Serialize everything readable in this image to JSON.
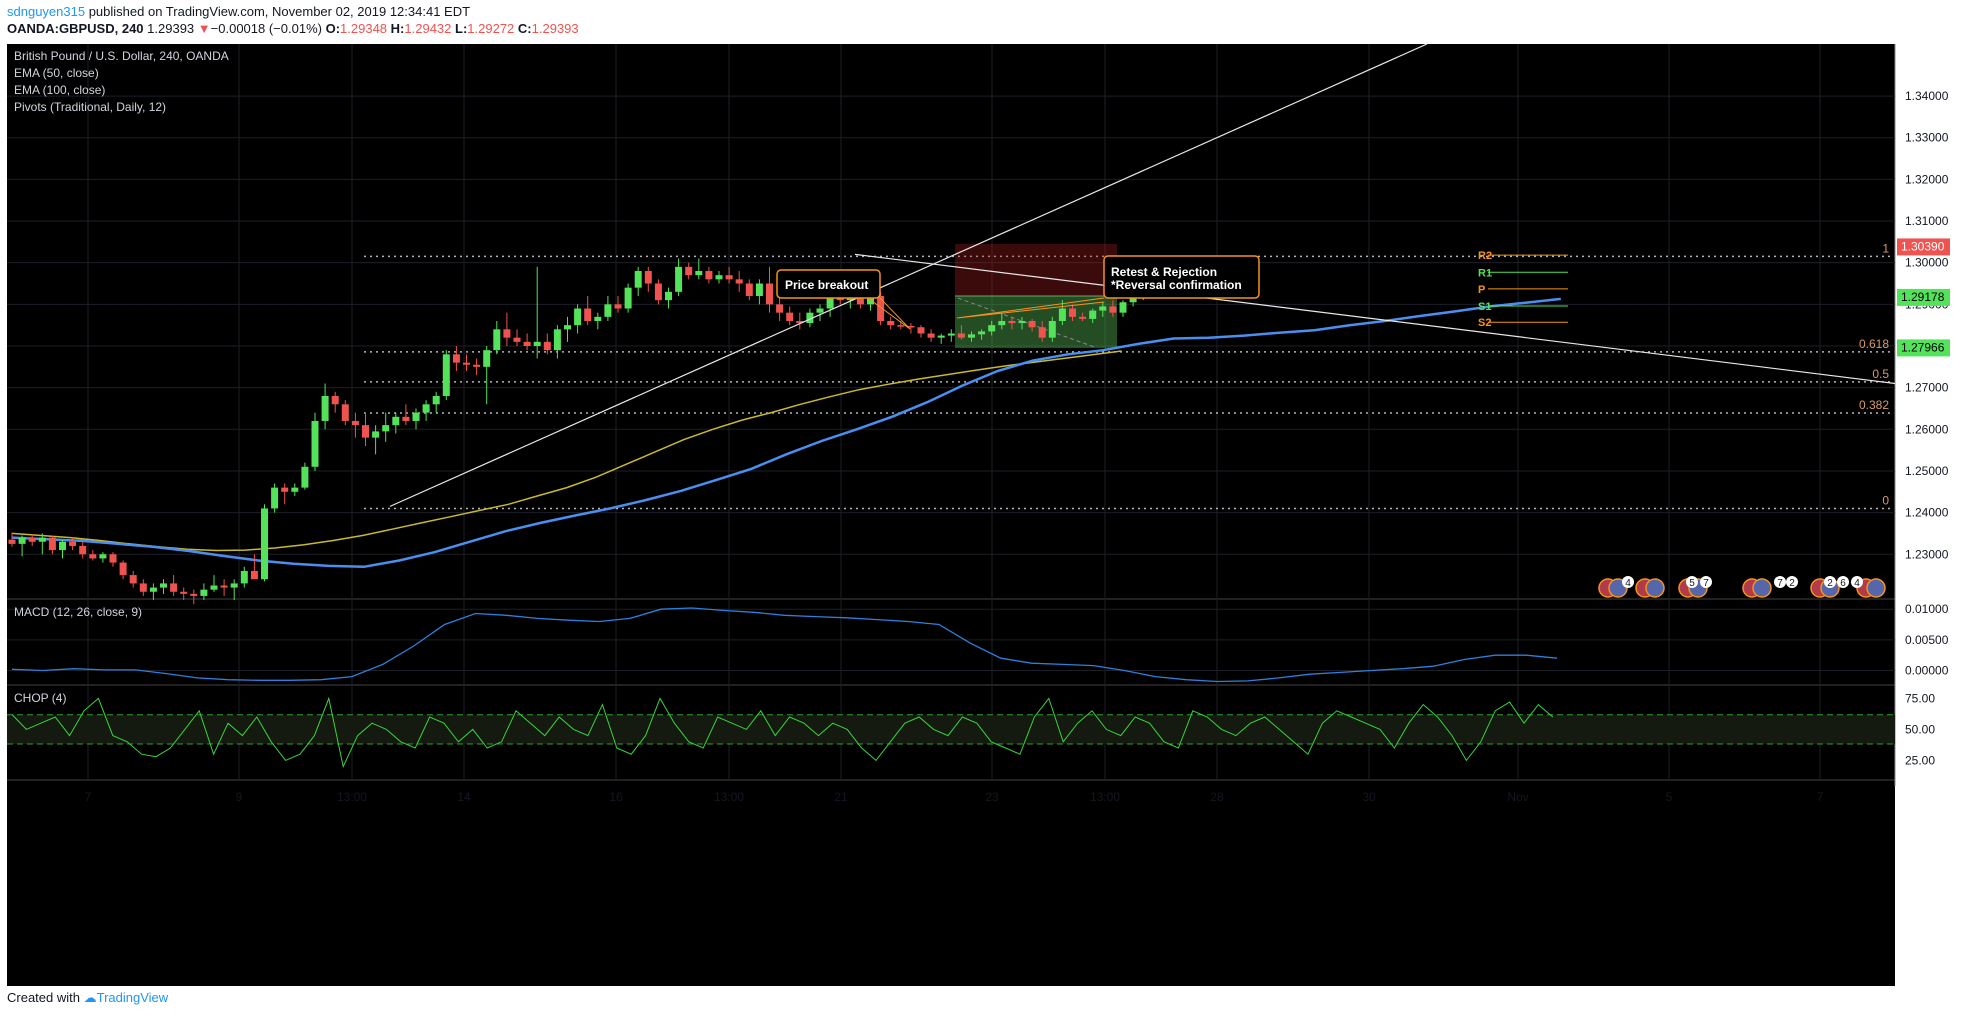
{
  "header": {
    "author": "sdnguyen315",
    "published_text": "published on TradingView.com, November 02, 2019 12:34:41 EDT",
    "symbol_line": "OANDA:GBPUSD, 240",
    "last": "1.29393",
    "change_arrow": "▼",
    "change": "−0.00018 (−0.01%)",
    "o_label": "O:",
    "o_val": "1.29348",
    "h_label": "H:",
    "h_val": "1.29432",
    "l_label": "L:",
    "l_val": "1.29272",
    "c_label": "C:",
    "c_val": "1.29393"
  },
  "legend": [
    "British Pound / U.S. Dollar, 240, OANDA",
    "EMA (50, close)",
    "EMA (100, close)",
    "Pivots (Traditional, Daily, 12)"
  ],
  "footer": {
    "created_with": "Created with",
    "brand": "TradingView"
  },
  "colors": {
    "background": "#000000",
    "grid": "#1c1f26",
    "up": "#53e25a",
    "down": "#ef5350",
    "ema50": "#4a8ff0",
    "ema100": "#c9b92e",
    "macd": "#2f7fdc",
    "chop": "#38d43c",
    "fib": "#b2b5be",
    "annotation": "#f7931a"
  },
  "chart_data": [
    {
      "type": "candlestick",
      "title": "British Pound / U.S. Dollar, 240, OANDA",
      "x_ticks": [
        "7",
        "9",
        "13:00",
        "14",
        "16",
        "13:00",
        "21",
        "23",
        "13:00",
        "28",
        "30",
        "Nov",
        "5",
        "7"
      ],
      "y_ticks": [
        "1.23000",
        "1.24000",
        "1.25000",
        "1.26000",
        "1.27000",
        "1.28000",
        "1.29000",
        "1.30000",
        "1.31000",
        "1.32000",
        "1.33000",
        "1.34000"
      ],
      "ylim": [
        1.2195,
        1.3525
      ],
      "price_badges": [
        {
          "value": "1.30390",
          "color": "#ef5350"
        },
        {
          "value": "1.29178",
          "color": "#53e25a"
        },
        {
          "value": "1.27966",
          "color": "#53e25a"
        }
      ],
      "fib_levels": [
        {
          "label": "1",
          "value": 1.3015
        },
        {
          "label": "0.618",
          "value": 1.2786
        },
        {
          "label": "0.5",
          "value": 1.2714
        },
        {
          "label": "0.382",
          "value": 1.2639
        },
        {
          "label": "0",
          "value": 1.241
        }
      ],
      "pivots": [
        {
          "label": "R2",
          "value": 1.3018,
          "color": "#f7931a"
        },
        {
          "label": "R1",
          "value": 1.2977,
          "color": "#53e25a"
        },
        {
          "label": "P",
          "value": 1.2937,
          "color": "#f7931a"
        },
        {
          "label": "S1",
          "value": 1.2896,
          "color": "#53e25a"
        },
        {
          "label": "S2",
          "value": 1.2857,
          "color": "#f7931a"
        }
      ],
      "annotations": [
        {
          "text": "Price breakout"
        },
        {
          "text": "Retest & Rejection",
          "text2": "*Reversal confirmation"
        }
      ],
      "event_badges": [
        "4",
        "5",
        "7",
        "7",
        "2",
        "2",
        "6",
        "4"
      ],
      "ohlc": [
        [
          1.2335,
          1.2352,
          1.2318,
          1.2325
        ],
        [
          1.2325,
          1.2345,
          1.2295,
          1.234
        ],
        [
          1.234,
          1.2348,
          1.232,
          1.233
        ],
        [
          1.233,
          1.235,
          1.23,
          1.234
        ],
        [
          1.234,
          1.2345,
          1.23,
          1.231
        ],
        [
          1.231,
          1.2335,
          1.229,
          1.233
        ],
        [
          1.233,
          1.234,
          1.231,
          1.232
        ],
        [
          1.232,
          1.233,
          1.229,
          1.23
        ],
        [
          1.23,
          1.231,
          1.2285,
          1.229
        ],
        [
          1.229,
          1.2305,
          1.228,
          1.23
        ],
        [
          1.23,
          1.2305,
          1.227,
          1.228
        ],
        [
          1.228,
          1.2285,
          1.224,
          1.225
        ],
        [
          1.225,
          1.226,
          1.222,
          1.223
        ],
        [
          1.223,
          1.224,
          1.22,
          1.221
        ],
        [
          1.221,
          1.223,
          1.219,
          1.222
        ],
        [
          1.222,
          1.224,
          1.2205,
          1.223
        ],
        [
          1.223,
          1.225,
          1.22,
          1.221
        ],
        [
          1.221,
          1.222,
          1.219,
          1.2205
        ],
        [
          1.2205,
          1.2215,
          1.218,
          1.22
        ],
        [
          1.22,
          1.223,
          1.219,
          1.2215
        ],
        [
          1.2215,
          1.225,
          1.221,
          1.2225
        ],
        [
          1.2225,
          1.224,
          1.22,
          1.222
        ],
        [
          1.222,
          1.224,
          1.219,
          1.223
        ],
        [
          1.223,
          1.227,
          1.222,
          1.226
        ],
        [
          1.226,
          1.23,
          1.225,
          1.224
        ],
        [
          1.224,
          1.242,
          1.2235,
          1.241
        ],
        [
          1.241,
          1.247,
          1.24,
          1.246
        ],
        [
          1.246,
          1.247,
          1.242,
          1.245
        ],
        [
          1.245,
          1.247,
          1.244,
          1.246
        ],
        [
          1.246,
          1.252,
          1.2455,
          1.251
        ],
        [
          1.251,
          1.264,
          1.25,
          1.262
        ],
        [
          1.262,
          1.271,
          1.26,
          1.268
        ],
        [
          1.268,
          1.269,
          1.264,
          1.266
        ],
        [
          1.266,
          1.267,
          1.261,
          1.262
        ],
        [
          1.262,
          1.264,
          1.258,
          1.261
        ],
        [
          1.261,
          1.264,
          1.256,
          1.258
        ],
        [
          1.258,
          1.261,
          1.254,
          1.2595
        ],
        [
          1.2595,
          1.264,
          1.257,
          1.261
        ],
        [
          1.261,
          1.264,
          1.259,
          1.263
        ],
        [
          1.263,
          1.266,
          1.261,
          1.262
        ],
        [
          1.262,
          1.265,
          1.26,
          1.264
        ],
        [
          1.264,
          1.267,
          1.262,
          1.266
        ],
        [
          1.266,
          1.269,
          1.264,
          1.268
        ],
        [
          1.268,
          1.279,
          1.267,
          1.278
        ],
        [
          1.278,
          1.28,
          1.274,
          1.276
        ],
        [
          1.276,
          1.278,
          1.274,
          1.2755
        ],
        [
          1.2755,
          1.277,
          1.273,
          1.275
        ],
        [
          1.275,
          1.28,
          1.266,
          1.279
        ],
        [
          1.279,
          1.286,
          1.278,
          1.284
        ],
        [
          1.284,
          1.288,
          1.28,
          1.282
        ],
        [
          1.282,
          1.284,
          1.28,
          1.281
        ],
        [
          1.281,
          1.283,
          1.279,
          1.28
        ],
        [
          1.28,
          1.299,
          1.277,
          1.281
        ],
        [
          1.281,
          1.283,
          1.278,
          1.279
        ],
        [
          1.279,
          1.285,
          1.277,
          1.284
        ],
        [
          1.284,
          1.287,
          1.281,
          1.285
        ],
        [
          1.285,
          1.29,
          1.283,
          1.289
        ],
        [
          1.289,
          1.292,
          1.285,
          1.286
        ],
        [
          1.286,
          1.288,
          1.284,
          1.287
        ],
        [
          1.287,
          1.292,
          1.286,
          1.29
        ],
        [
          1.29,
          1.292,
          1.288,
          1.289
        ],
        [
          1.289,
          1.295,
          1.288,
          1.294
        ],
        [
          1.294,
          1.299,
          1.292,
          1.298
        ],
        [
          1.298,
          1.299,
          1.293,
          1.295
        ],
        [
          1.295,
          1.296,
          1.29,
          1.291
        ],
        [
          1.291,
          1.294,
          1.289,
          1.293
        ],
        [
          1.293,
          1.301,
          1.292,
          1.299
        ],
        [
          1.299,
          1.3,
          1.296,
          1.297
        ],
        [
          1.297,
          1.301,
          1.296,
          1.298
        ],
        [
          1.298,
          1.299,
          1.295,
          1.296
        ],
        [
          1.296,
          1.298,
          1.295,
          1.297
        ],
        [
          1.297,
          1.299,
          1.295,
          1.296
        ],
        [
          1.296,
          1.298,
          1.293,
          1.295
        ],
        [
          1.295,
          1.296,
          1.291,
          1.292
        ],
        [
          1.292,
          1.296,
          1.29,
          1.295
        ],
        [
          1.295,
          1.299,
          1.288,
          1.29
        ],
        [
          1.29,
          1.292,
          1.286,
          1.288
        ],
        [
          1.288,
          1.2895,
          1.285,
          1.286
        ],
        [
          1.286,
          1.288,
          1.284,
          1.2855
        ],
        [
          1.2855,
          1.289,
          1.2845,
          1.288
        ],
        [
          1.288,
          1.29,
          1.286,
          1.289
        ],
        [
          1.289,
          1.292,
          1.287,
          1.2915
        ],
        [
          1.2915,
          1.2925,
          1.29,
          1.291
        ],
        [
          1.291,
          1.293,
          1.289,
          1.292
        ],
        [
          1.292,
          1.293,
          1.289,
          1.29
        ],
        [
          1.29,
          1.293,
          1.2885,
          1.292
        ],
        [
          1.292,
          1.293,
          1.285,
          1.286
        ],
        [
          1.286,
          1.287,
          1.284,
          1.285
        ],
        [
          1.285,
          1.286,
          1.284,
          1.2848
        ],
        [
          1.2848,
          1.2855,
          1.283,
          1.2845
        ],
        [
          1.2845,
          1.285,
          1.282,
          1.283
        ],
        [
          1.283,
          1.284,
          1.281,
          1.282
        ],
        [
          1.282,
          1.283,
          1.2805,
          1.2825
        ],
        [
          1.2825,
          1.284,
          1.281,
          1.283
        ],
        [
          1.283,
          1.285,
          1.2815,
          1.282
        ],
        [
          1.282,
          1.2835,
          1.281,
          1.2828
        ],
        [
          1.2828,
          1.284,
          1.2815,
          1.2835
        ],
        [
          1.2835,
          1.286,
          1.2825,
          1.285
        ],
        [
          1.285,
          1.288,
          1.284,
          1.286
        ],
        [
          1.286,
          1.287,
          1.284,
          1.2855
        ],
        [
          1.2855,
          1.287,
          1.284,
          1.286
        ],
        [
          1.286,
          1.2865,
          1.2835,
          1.2845
        ],
        [
          1.2845,
          1.286,
          1.281,
          1.282
        ],
        [
          1.282,
          1.287,
          1.281,
          1.286
        ],
        [
          1.286,
          1.291,
          1.285,
          1.289
        ],
        [
          1.289,
          1.29,
          1.286,
          1.287
        ],
        [
          1.287,
          1.288,
          1.286,
          1.2865
        ],
        [
          1.2865,
          1.289,
          1.2855,
          1.2885
        ],
        [
          1.2885,
          1.2905,
          1.287,
          1.2895
        ],
        [
          1.2895,
          1.291,
          1.287,
          1.288
        ],
        [
          1.288,
          1.291,
          1.287,
          1.2905
        ],
        [
          1.2905,
          1.293,
          1.2895,
          1.2925
        ],
        [
          1.2925,
          1.295,
          1.291,
          1.2945
        ],
        [
          1.2945,
          1.297,
          1.293,
          1.296
        ],
        [
          1.296,
          1.297,
          1.293,
          1.295
        ],
        [
          1.295,
          1.296,
          1.293,
          1.294
        ],
        [
          1.294,
          1.2965,
          1.293,
          1.296
        ],
        [
          1.296,
          1.297,
          1.295,
          1.2955
        ],
        [
          1.2955,
          1.2975,
          1.292,
          1.2935
        ],
        [
          1.2935,
          1.2945,
          1.2925,
          1.2939
        ]
      ],
      "ema50": [
        1.234,
        1.2336,
        1.2332,
        1.2325,
        1.2318,
        1.2308,
        1.2296,
        1.2285,
        1.2277,
        1.2272,
        1.227,
        1.2285,
        1.2305,
        1.233,
        1.2355,
        1.2375,
        1.2393,
        1.241,
        1.243,
        1.2452,
        1.2478,
        1.2505,
        1.254,
        1.2572,
        1.26,
        1.263,
        1.2665,
        1.2705,
        1.274,
        1.2765,
        1.278,
        1.279,
        1.2805,
        1.2818,
        1.282,
        1.2825,
        1.2832,
        1.2838,
        1.285,
        1.286,
        1.2872,
        1.2883,
        1.2895,
        1.2904,
        1.2913
      ],
      "ema100": [
        1.235,
        1.2345,
        1.234,
        1.2333,
        1.2325,
        1.2318,
        1.2312,
        1.2309,
        1.231,
        1.2315,
        1.2323,
        1.2333,
        1.2345,
        1.236,
        1.2375,
        1.239,
        1.2405,
        1.242,
        1.244,
        1.246,
        1.2485,
        1.2515,
        1.2545,
        1.2575,
        1.26,
        1.2622,
        1.264,
        1.266,
        1.2678,
        1.2695,
        1.2708,
        1.272,
        1.2731,
        1.2742,
        1.2752,
        1.2761,
        1.277,
        1.2779,
        1.2788
      ],
      "macd_ticks": [
        "0.00000",
        "0.00500",
        "0.01000"
      ],
      "macd_label": "MACD (12, 26, close, 9)",
      "macd": [
        0.0002,
        0.0,
        0.0003,
        0.0001,
        0.0001,
        -0.0005,
        -0.0012,
        -0.0015,
        -0.0016,
        -0.0016,
        -0.0015,
        -0.001,
        0.001,
        0.004,
        0.0075,
        0.0093,
        0.009,
        0.0085,
        0.0082,
        0.008,
        0.0085,
        0.01,
        0.0102,
        0.0098,
        0.0095,
        0.009,
        0.0088,
        0.0086,
        0.0083,
        0.008,
        0.0075,
        0.0045,
        0.002,
        0.0012,
        0.001,
        0.0008,
        0.0,
        -0.001,
        -0.0015,
        -0.0018,
        -0.0017,
        -0.0012,
        -0.0006,
        -0.0003,
        0.0,
        0.0003,
        0.0007,
        0.0018,
        0.0025,
        0.0025,
        0.002
      ],
      "chop_ticks": [
        "25.00",
        "50.00",
        "75.00"
      ],
      "chop_label": "CHOP (4)",
      "chop_levels": [
        61.8,
        38.2
      ],
      "chop": [
        62,
        50,
        55,
        60,
        45,
        65,
        75,
        45,
        40,
        30,
        28,
        35,
        50,
        65,
        30,
        55,
        45,
        60,
        40,
        25,
        30,
        45,
        75,
        20,
        45,
        55,
        50,
        40,
        35,
        60,
        55,
        40,
        50,
        35,
        40,
        65,
        55,
        45,
        60,
        50,
        45,
        70,
        35,
        30,
        45,
        75,
        55,
        40,
        35,
        60,
        55,
        50,
        65,
        45,
        60,
        55,
        45,
        55,
        50,
        35,
        25,
        40,
        55,
        60,
        50,
        45,
        60,
        55,
        40,
        35,
        30,
        60,
        75,
        40,
        55,
        65,
        50,
        45,
        60,
        55,
        40,
        35,
        65,
        60,
        50,
        45,
        55,
        60,
        50,
        40,
        30,
        55,
        65,
        60,
        55,
        50,
        35,
        55,
        70,
        60,
        45,
        25,
        40,
        65,
        72,
        55,
        70,
        60
      ]
    }
  ]
}
